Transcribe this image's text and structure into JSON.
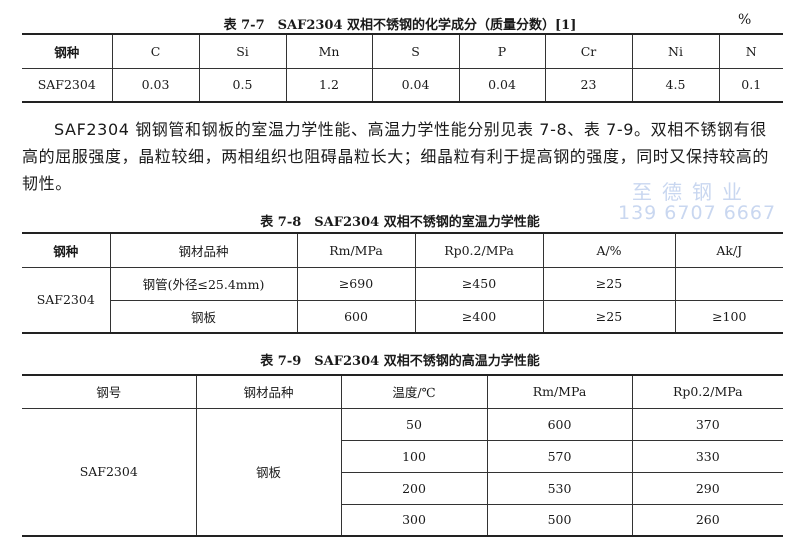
{
  "table77": {
    "caption": "表 7-7　SAF2304 双相不锈钢的化学成分（质量分数）[1]",
    "unit": "%",
    "headers": [
      "钢种",
      "C",
      "Si",
      "Mn",
      "S",
      "P",
      "Cr",
      "Ni",
      "N"
    ],
    "row": [
      "SAF2304",
      "0.03",
      "0.5",
      "1.2",
      "0.04",
      "0.04",
      "23",
      "4.5",
      "0.1"
    ]
  },
  "paragraph": "SAF2304 钢钢管和钢板的室温力学性能、高温力学性能分别见表 7-8、表 7-9。双相不锈钢有很高的屈服强度，晶粒较细，两相组织也阻碍晶粒长大；细晶粒有利于提高钢的强度，同时又保持较高的韧性。",
  "watermark": {
    "name": "至德钢业",
    "phone": "139 6707 6667"
  },
  "table78": {
    "caption": "表 7-8　SAF2304 双相不锈钢的室温力学性能",
    "headers": [
      "钢种",
      "钢材品种",
      "Rm/MPa",
      "Rp0.2/MPa",
      "A/%",
      "Ak/J"
    ],
    "grade": "SAF2304",
    "rows": [
      [
        "钢管(外径≤25.4mm)",
        "≥690",
        "≥450",
        "≥25",
        ""
      ],
      [
        "钢板",
        "600",
        "≥400",
        "≥25",
        "≥100"
      ]
    ]
  },
  "table79": {
    "caption": "表 7-9　SAF2304 双相不锈钢的高温力学性能",
    "headers": [
      "钢号",
      "钢材品种",
      "温度/℃",
      "Rm/MPa",
      "Rp0.2/MPa"
    ],
    "grade": "SAF2304",
    "product": "钢板",
    "rows": [
      [
        "50",
        "600",
        "370"
      ],
      [
        "100",
        "570",
        "330"
      ],
      [
        "200",
        "530",
        "290"
      ],
      [
        "300",
        "500",
        "260"
      ]
    ]
  }
}
